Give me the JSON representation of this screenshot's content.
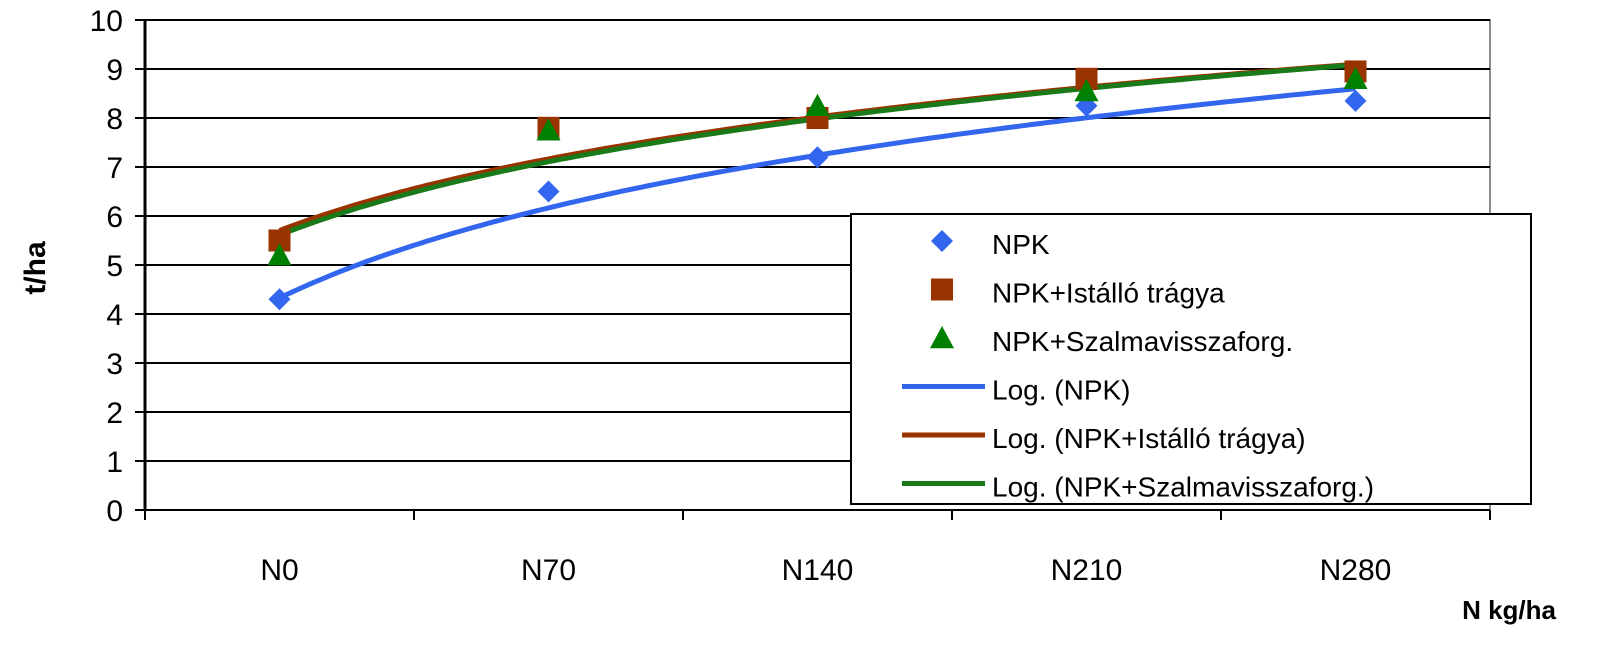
{
  "chart_data": {
    "type": "scatter",
    "title": "",
    "xlabel": "N kg/ha",
    "ylabel": "t/ha",
    "categories": [
      "N0",
      "N70",
      "N140",
      "N210",
      "N280"
    ],
    "yticks": [
      "0",
      "1",
      "2",
      "3",
      "4",
      "5",
      "6",
      "7",
      "8",
      "9",
      "10"
    ],
    "ylim": [
      0,
      10
    ],
    "grid": "horizontal",
    "legend_position": "right",
    "series": [
      {
        "name": "NPK",
        "marker": "diamond",
        "color": "#3366ee",
        "values": [
          4.3,
          6.5,
          7.2,
          8.25,
          8.35
        ]
      },
      {
        "name": "NPK+Istálló trágya",
        "marker": "square",
        "color": "#993300",
        "values": [
          5.5,
          7.8,
          8.0,
          8.8,
          8.95
        ]
      },
      {
        "name": "NPK+Szalmavisszaforg.",
        "marker": "triangle",
        "color": "#008000",
        "values": [
          5.2,
          7.75,
          8.25,
          8.55,
          8.8
        ]
      }
    ],
    "trendlines": [
      {
        "name": "Log. (NPK)",
        "color": "#3366ee",
        "a": 4.326,
        "b": 2.6537
      },
      {
        "name": "Log. (NPK+Istálló trágya)",
        "color": "#993300",
        "a": 5.703,
        "b": 2.1102
      },
      {
        "name": "Log. (NPK+Szalmavisszaforg.)",
        "color": "#1a7a1a",
        "a": 5.611,
        "b": 2.1586
      }
    ]
  }
}
